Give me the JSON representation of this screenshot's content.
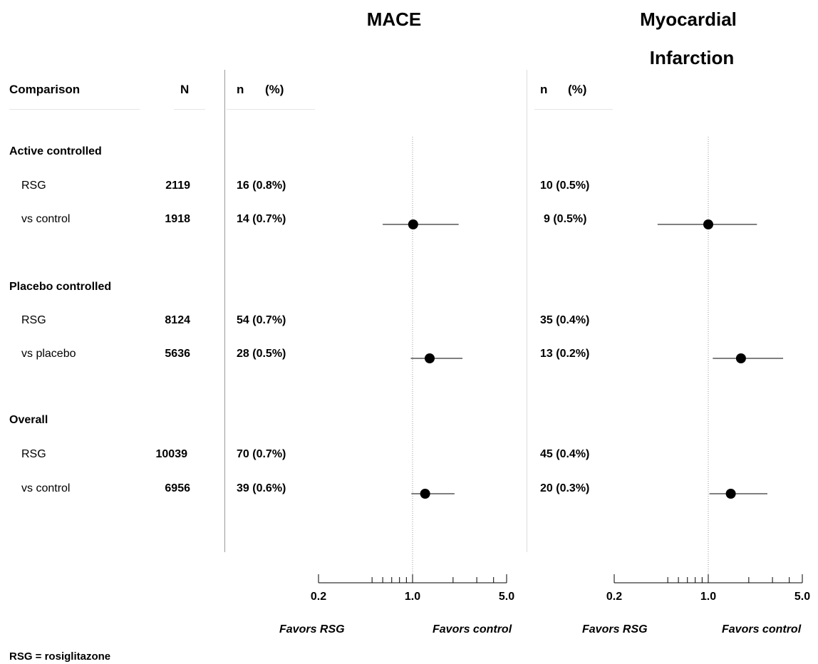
{
  "titles": {
    "mace": "MACE",
    "mi_line1": "Myocardial",
    "mi_line2": "Infarction"
  },
  "headers": {
    "comparison": "Comparison",
    "n_total": "N",
    "mace_n": "n",
    "mace_pct": "(%)",
    "mi_n": "n",
    "mi_pct": "(%)"
  },
  "groups": [
    {
      "name": "Active controlled",
      "rows": [
        {
          "label": "RSG",
          "N": "2119",
          "mace": "16 (0.8%)",
          "mi": "10 (0.5%)"
        },
        {
          "label": "vs control",
          "N": "1918",
          "mace": "14 (0.7%)",
          "mi": "9 (0.5%)"
        }
      ]
    },
    {
      "name": "Placebo controlled",
      "rows": [
        {
          "label": "RSG",
          "N": "8124",
          "mace": "54 (0.7%)",
          "mi": "35 (0.4%)"
        },
        {
          "label": "vs placebo",
          "N": "5636",
          "mace": "28 (0.5%)",
          "mi": "13 (0.2%)"
        }
      ]
    },
    {
      "name": "Overall",
      "rows": [
        {
          "label": "RSG",
          "N": "10039",
          "mace": "70 (0.7%)",
          "mi": "45 (0.4%)"
        },
        {
          "label": "vs control",
          "N": "6956",
          "mace": "39 (0.6%)",
          "mi": "20 (0.3%)"
        }
      ]
    }
  ],
  "axis": {
    "tick_labels": [
      "0.2",
      "1.0",
      "5.0"
    ],
    "favors_left": "Favors RSG",
    "favors_right": "Favors control"
  },
  "footnote": "RSG = rosiglitazone",
  "chart_data": [
    {
      "type": "scatter",
      "title": "MACE",
      "scale": "log",
      "xlim": [
        0.2,
        5.0
      ],
      "xticks": [
        0.2,
        1.0,
        5.0
      ],
      "minor_ticks": [
        0.5,
        0.6,
        0.7,
        0.8,
        0.9,
        2,
        3,
        4
      ],
      "reference_line": 1.0,
      "categories": [
        "Active controlled",
        "Placebo controlled",
        "Overall"
      ],
      "estimates": [
        1.01,
        1.34,
        1.24
      ],
      "ci_low": [
        0.6,
        0.97,
        0.98
      ],
      "ci_high": [
        2.2,
        2.35,
        2.05
      ]
    },
    {
      "type": "scatter",
      "title": "Myocardial Infarction",
      "scale": "log",
      "xlim": [
        0.2,
        5.0
      ],
      "xticks": [
        0.2,
        1.0,
        5.0
      ],
      "minor_ticks": [
        0.5,
        0.6,
        0.7,
        0.8,
        0.9,
        2,
        3,
        4
      ],
      "reference_line": 1.0,
      "categories": [
        "Active controlled",
        "Placebo controlled",
        "Overall"
      ],
      "estimates": [
        1.0,
        1.75,
        1.47
      ],
      "ci_low": [
        0.42,
        1.08,
        1.02
      ],
      "ci_high": [
        2.3,
        3.6,
        2.75
      ]
    }
  ]
}
